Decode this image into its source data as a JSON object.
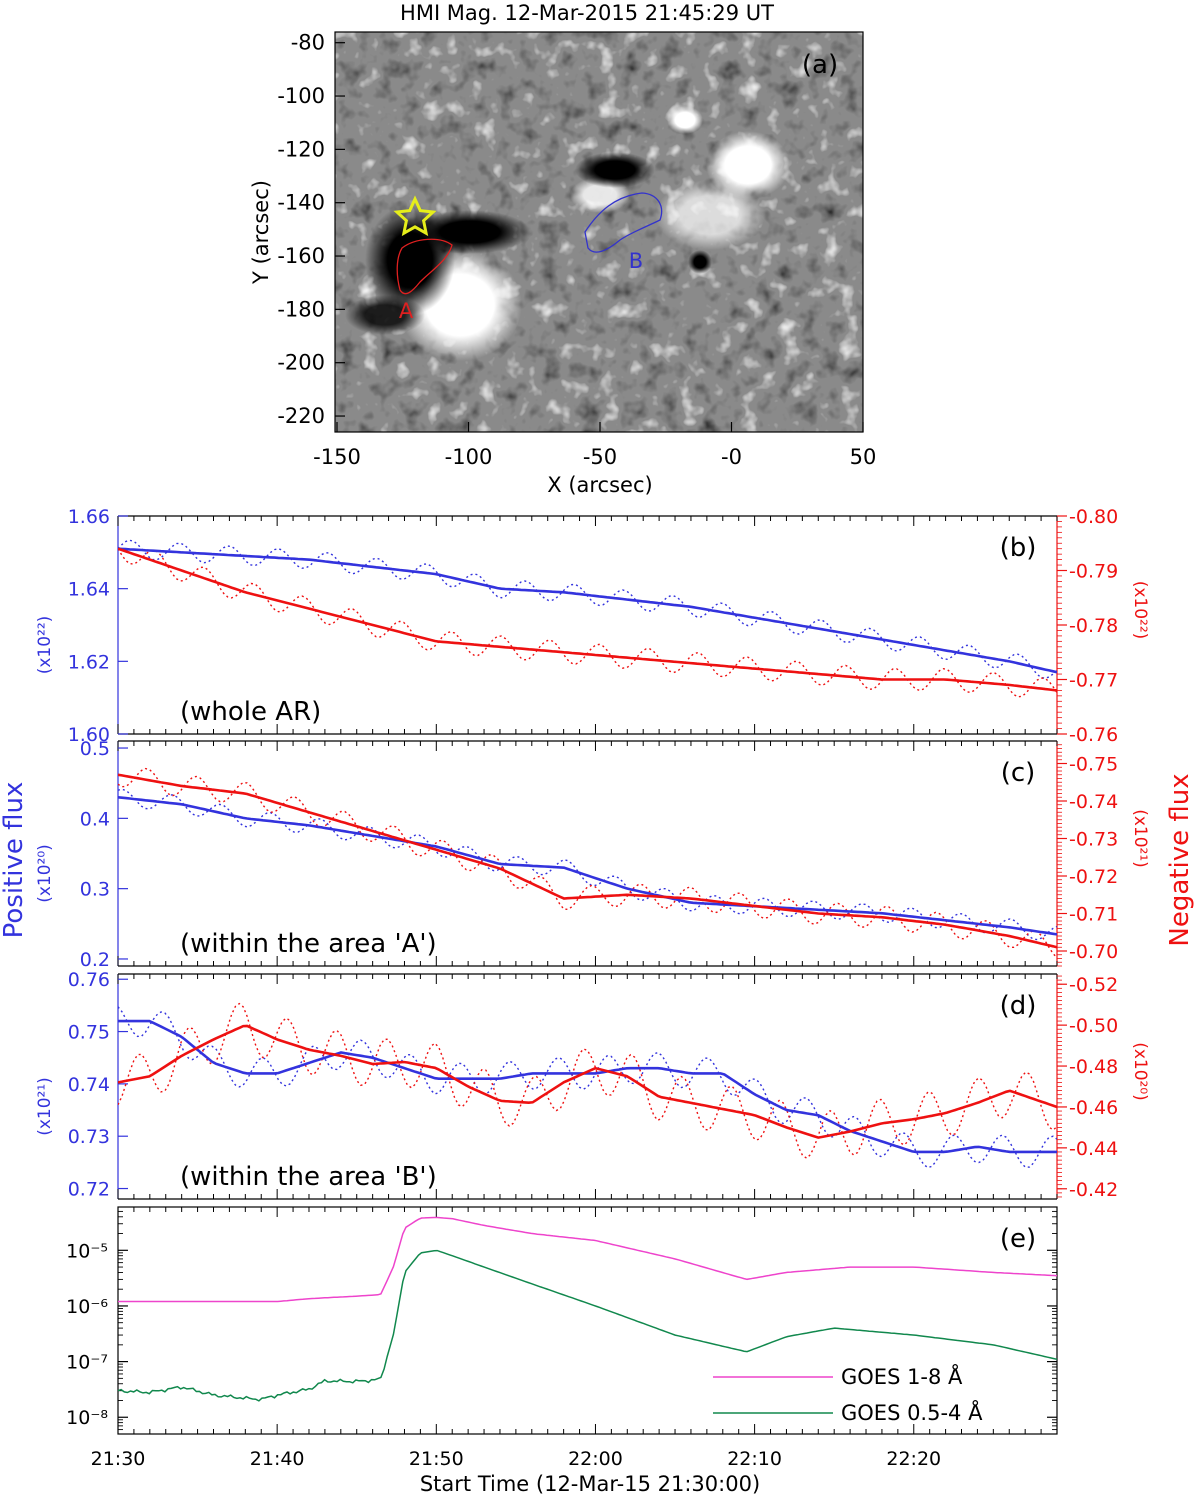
{
  "figure": {
    "panel_a": {
      "title": "HMI Mag. 12-Mar-2015 21:45:29 UT",
      "label": "(a)",
      "xlabel": "X (arcsec)",
      "ylabel": "Y (arcsec)",
      "xticks": [
        "-150",
        "-100",
        "-50",
        "-0",
        "50"
      ],
      "yticks": [
        "-80",
        "-100",
        "-120",
        "-140",
        "-160",
        "-180",
        "-200",
        "-220"
      ],
      "region_a_label": "A",
      "region_b_label": "B",
      "colors": {
        "region_a": "#e02020",
        "region_b": "#3333cc",
        "star": "#e6ee1a"
      }
    },
    "shared": {
      "left_ylabel": "Positive flux",
      "right_ylabel": "Negative flux",
      "xlabel": "Start Time (12-Mar-15 21:30:00)",
      "xticks": [
        "21:30",
        "21:40",
        "21:50",
        "22:00",
        "22:10",
        "22:20"
      ]
    },
    "colors": {
      "positive": "#3333dd",
      "negative": "#ee1111",
      "goes_long": "#ee44cc",
      "goes_short": "#11884d"
    }
  },
  "chart_data": [
    {
      "type": "line",
      "panel": "(b)",
      "annotation": "(whole AR)",
      "left_unit": "(x10²²)",
      "right_unit": "(x10²²)",
      "x_minutes": [
        0,
        4,
        8,
        12,
        16,
        20,
        24,
        28,
        32,
        36,
        40,
        44,
        48,
        52,
        56,
        59
      ],
      "positive_smooth": [
        1.651,
        1.65,
        1.649,
        1.648,
        1.646,
        1.644,
        1.64,
        1.639,
        1.637,
        1.635,
        1.632,
        1.629,
        1.626,
        1.623,
        1.62,
        1.617
      ],
      "positive_raw_offset": 0.0025,
      "negative_smooth": [
        -0.794,
        -0.79,
        -0.786,
        -0.783,
        -0.78,
        -0.777,
        -0.776,
        -0.775,
        -0.774,
        -0.773,
        -0.772,
        -0.771,
        -0.77,
        -0.77,
        -0.769,
        -0.768
      ],
      "negative_raw_offset": 0.002,
      "left_ylim": [
        1.6,
        1.66
      ],
      "left_ticks": [
        "1.60",
        "1.62",
        "1.64",
        "1.66"
      ],
      "right_ylim": [
        -0.76,
        -0.8
      ],
      "right_ticks": [
        "-0.76",
        "-0.77",
        "-0.78",
        "-0.79",
        "-0.80"
      ]
    },
    {
      "type": "line",
      "panel": "(c)",
      "annotation": "(within the area 'A')",
      "left_unit": "(x10²⁰)",
      "right_unit": "(x10²¹)",
      "x_minutes": [
        0,
        4,
        8,
        12,
        16,
        20,
        24,
        28,
        32,
        36,
        40,
        44,
        48,
        52,
        56,
        59
      ],
      "positive_smooth": [
        0.43,
        0.42,
        0.4,
        0.39,
        0.375,
        0.36,
        0.335,
        0.33,
        0.3,
        0.28,
        0.275,
        0.27,
        0.265,
        0.255,
        0.245,
        0.235
      ],
      "positive_raw_offset": 0.012,
      "negative_smooth": [
        -0.747,
        -0.744,
        -0.742,
        -0.737,
        -0.732,
        -0.727,
        -0.722,
        -0.714,
        -0.715,
        -0.714,
        -0.712,
        -0.71,
        -0.709,
        -0.707,
        -0.704,
        -0.701
      ],
      "negative_raw_offset": 0.003,
      "left_ylim": [
        0.19,
        0.51
      ],
      "left_ticks": [
        "0.2",
        "0.3",
        "0.4",
        "0.5"
      ],
      "right_ylim": [
        -0.696,
        -0.756
      ],
      "right_ticks": [
        "-0.70",
        "-0.71",
        "-0.72",
        "-0.73",
        "-0.74",
        "-0.75"
      ]
    },
    {
      "type": "line",
      "panel": "(d)",
      "annotation": "(within the area 'B')",
      "left_unit": "(x10²¹)",
      "right_unit": "(x10²⁰)",
      "x_minutes": [
        0,
        2,
        4,
        6,
        8,
        10,
        12,
        14,
        16,
        18,
        20,
        22,
        24,
        26,
        28,
        30,
        32,
        34,
        36,
        38,
        40,
        42,
        44,
        46,
        48,
        50,
        52,
        54,
        56,
        59
      ],
      "positive_smooth": [
        0.752,
        0.752,
        0.749,
        0.744,
        0.742,
        0.742,
        0.744,
        0.746,
        0.745,
        0.743,
        0.741,
        0.741,
        0.741,
        0.742,
        0.742,
        0.742,
        0.743,
        0.743,
        0.742,
        0.742,
        0.738,
        0.735,
        0.734,
        0.731,
        0.729,
        0.727,
        0.727,
        0.728,
        0.727,
        0.727
      ],
      "positive_raw_offset": 0.003,
      "negative_smooth": [
        -0.472,
        -0.475,
        -0.485,
        -0.493,
        -0.5,
        -0.493,
        -0.488,
        -0.485,
        -0.481,
        -0.482,
        -0.479,
        -0.47,
        -0.463,
        -0.462,
        -0.472,
        -0.479,
        -0.475,
        -0.465,
        -0.462,
        -0.459,
        -0.456,
        -0.45,
        -0.445,
        -0.448,
        -0.452,
        -0.454,
        -0.457,
        -0.462,
        -0.468,
        -0.46
      ],
      "negative_raw_offset": 0.012,
      "left_ylim": [
        0.718,
        0.761
      ],
      "left_ticks": [
        "0.72",
        "0.73",
        "0.74",
        "0.75",
        "0.76"
      ],
      "right_ylim": [
        -0.415,
        -0.525
      ],
      "right_ticks": [
        "-0.42",
        "-0.44",
        "-0.46",
        "-0.48",
        "-0.50",
        "-0.52"
      ]
    },
    {
      "type": "line",
      "panel": "(e)",
      "y_scale": "log",
      "ylim": [
        5e-09,
        6e-05
      ],
      "y_ticks": [
        "10⁻⁸",
        "10⁻⁷",
        "10⁻⁶",
        "10⁻⁵"
      ],
      "series": [
        {
          "name": "GOES 1-8 Å",
          "color_key": "goes_long",
          "x": [
            0,
            5,
            10,
            12,
            13,
            15,
            16.5,
            17.3,
            18,
            19,
            20,
            21,
            23,
            26,
            30,
            35,
            39.5,
            42,
            46,
            50,
            55,
            59
          ],
          "y": [
            1.2e-06,
            1.2e-06,
            1.2e-06,
            1.35e-06,
            1.4e-06,
            1.5e-06,
            1.6e-06,
            5e-06,
            2.5e-05,
            3.8e-05,
            3.9e-05,
            3.7e-05,
            2.8e-05,
            2e-05,
            1.5e-05,
            7e-06,
            3e-06,
            4e-06,
            5e-06,
            5e-06,
            4e-06,
            3.5e-06
          ]
        },
        {
          "name": "GOES 0.5-4 Å",
          "color_key": "goes_short",
          "x": [
            0,
            2,
            4,
            6,
            8,
            9,
            10,
            12,
            13,
            15,
            16.5,
            17.3,
            18,
            19,
            20,
            21,
            23,
            26,
            30,
            35,
            39.5,
            42,
            45,
            50,
            55,
            59
          ],
          "y": [
            3e-08,
            2.8e-08,
            3.5e-08,
            2.5e-08,
            2.2e-08,
            2.1e-08,
            2.5e-08,
            3.2e-08,
            4.5e-08,
            4.4e-08,
            4.8e-08,
            3e-07,
            4e-06,
            9e-06,
            1e-05,
            8e-06,
            5e-06,
            2.5e-06,
            1e-06,
            3e-07,
            1.5e-07,
            2.8e-07,
            4e-07,
            3e-07,
            2e-07,
            1.1e-07
          ]
        }
      ]
    }
  ]
}
